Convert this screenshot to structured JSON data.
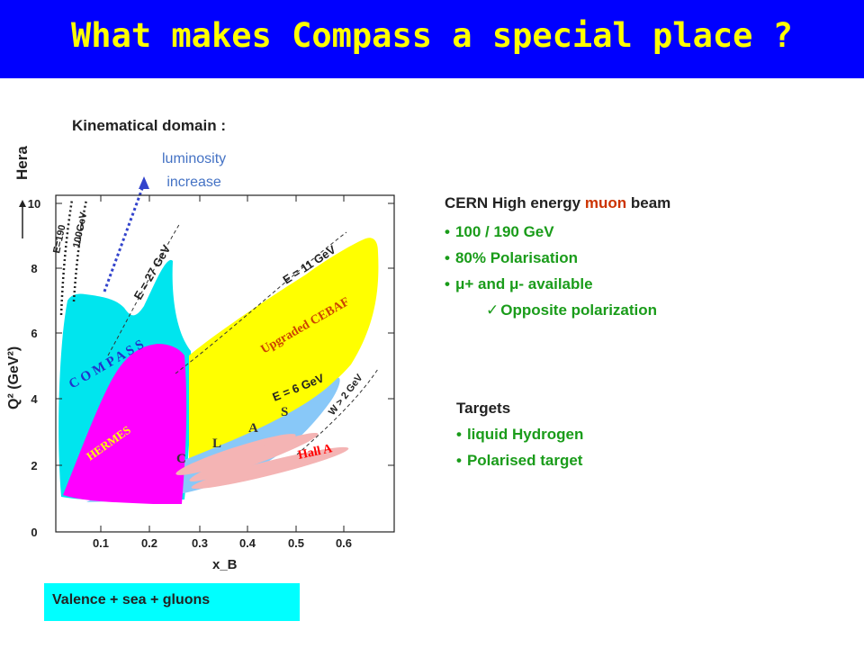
{
  "title": "What makes Compass a special place ?",
  "kinematic_label": "Kinematical domain :",
  "luminosity": {
    "line1": "luminosity",
    "line2": "increase"
  },
  "beam": {
    "heading_prefix": "CERN High energy ",
    "heading_highlight": "muon",
    "heading_suffix": " beam",
    "items": [
      "100 / 190 GeV",
      "80% Polarisation",
      "μ+ and μ- available"
    ],
    "subitem": "Opposite polarization"
  },
  "targets": {
    "heading": "Targets",
    "items": [
      "liquid Hydrogen",
      "Polarised target"
    ]
  },
  "valence": "Valence + sea + gluons",
  "plot": {
    "hera_label": "Hera",
    "y_label": "Q² (GeV²)",
    "x_label": "x_B",
    "x_ticks": [
      "0.1",
      "0.2",
      "0.3",
      "0.4",
      "0.5",
      "0.6"
    ],
    "y_ticks": [
      "0",
      "2",
      "4",
      "6",
      "8",
      "10"
    ],
    "region_labels": {
      "compass": "C O M P A S S",
      "hermes": "HERMES",
      "cebaf": "Upgraded CEBAF",
      "clas": [
        "C",
        "L",
        "A",
        "S"
      ],
      "hall_a": "Hall A"
    },
    "line_labels": {
      "e190": "E=190",
      "e100": "100GeV",
      "e27": "E = 27 GeV",
      "e11": "E = 11 GeV",
      "e6": "E = 6 GeV",
      "w2": "W > 2 GeV"
    },
    "colors": {
      "compass": "#00e5ee",
      "hermes": "#ff00ff",
      "cebaf": "#ffff00",
      "clas": "#88c8f8",
      "hall_a": "#f4b4b4",
      "hall_a_label": "#ff0000",
      "cebaf_label": "#cc4400"
    }
  }
}
